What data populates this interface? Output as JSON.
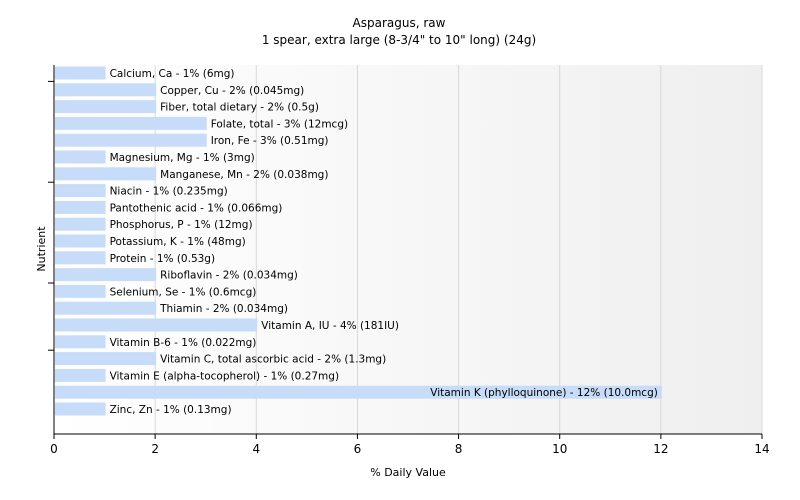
{
  "chart_data": {
    "type": "bar",
    "orientation": "horizontal",
    "title": "Asparagus, raw",
    "subtitle": "1 spear, extra large (8-3/4\" to 10\" long) (24g)",
    "xlabel": "% Daily Value",
    "ylabel": "Nutrient",
    "xlim": [
      0,
      14
    ],
    "xticks": [
      0,
      2,
      4,
      6,
      8,
      10,
      12,
      14
    ],
    "grid": true,
    "bar_color": "#c6dcf8",
    "categories": [
      "Calcium, Ca",
      "Copper, Cu",
      "Fiber, total dietary",
      "Folate, total",
      "Iron, Fe",
      "Magnesium, Mg",
      "Manganese, Mn",
      "Niacin",
      "Pantothenic acid",
      "Phosphorus, P",
      "Potassium, K",
      "Protein",
      "Riboflavin",
      "Selenium, Se",
      "Thiamin",
      "Vitamin A, IU",
      "Vitamin B-6",
      "Vitamin C, total ascorbic acid",
      "Vitamin E (alpha-tocopherol)",
      "Vitamin K (phylloquinone)",
      "Zinc, Zn"
    ],
    "values": [
      1,
      2,
      2,
      3,
      3,
      1,
      2,
      1,
      1,
      1,
      1,
      1,
      2,
      1,
      2,
      4,
      1,
      2,
      1,
      12,
      1
    ],
    "labels": [
      "Calcium, Ca - 1% (6mg)",
      "Copper, Cu - 2% (0.045mg)",
      "Fiber, total dietary - 2% (0.5g)",
      "Folate, total - 3% (12mcg)",
      "Iron, Fe - 3% (0.51mg)",
      "Magnesium, Mg - 1% (3mg)",
      "Manganese, Mn - 2% (0.038mg)",
      "Niacin - 1% (0.235mg)",
      "Pantothenic acid - 1% (0.066mg)",
      "Phosphorus, P - 1% (12mg)",
      "Potassium, K - 1% (48mg)",
      "Protein - 1% (0.53g)",
      "Riboflavin - 2% (0.034mg)",
      "Selenium, Se - 1% (0.6mcg)",
      "Thiamin - 2% (0.034mg)",
      "Vitamin A, IU - 4% (181IU)",
      "Vitamin B-6 - 1% (0.022mg)",
      "Vitamin C, total ascorbic acid - 2% (1.3mg)",
      "Vitamin E (alpha-tocopherol) - 1% (0.27mg)",
      "Vitamin K (phylloquinone) - 12% (10.0mcg)",
      "Zinc, Zn - 1% (0.13mg)"
    ]
  }
}
